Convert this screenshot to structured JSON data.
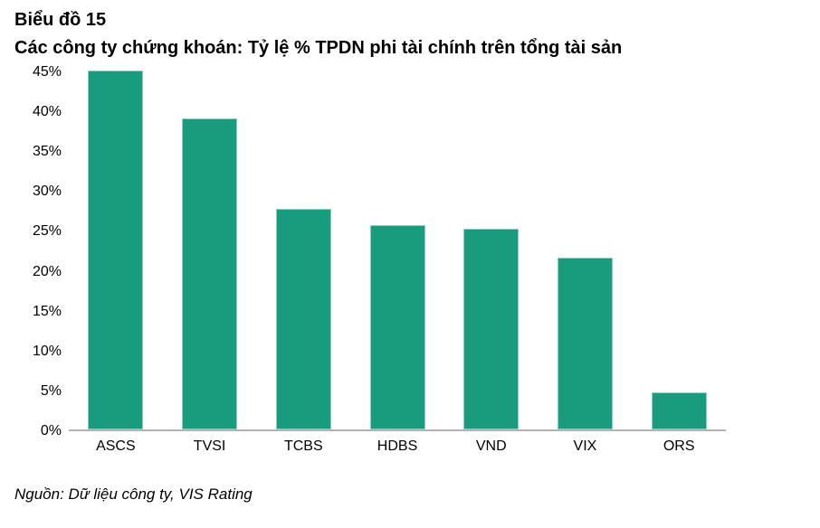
{
  "header": {
    "title": "Biểu đồ 15",
    "subtitle": "Các công ty chứng khoán: Tỷ lệ % TPDN phi tài chính trên tổng tài sản"
  },
  "footer": {
    "source": "Nguồn: Dữ liệu công ty, VIS Rating"
  },
  "chart_data": {
    "type": "bar",
    "title": "Biểu đồ 15",
    "subtitle": "Các công ty chứng khoán: Tỷ lệ % TPDN phi tài chính trên tổng tài sản",
    "categories": [
      "ASCS",
      "TVSI",
      "TCBS",
      "HDBS",
      "VND",
      "VIX",
      "ORS"
    ],
    "values": [
      45,
      39,
      27.7,
      25.6,
      25.2,
      21.5,
      4.6
    ],
    "value_unit": "%",
    "xlabel": "",
    "ylabel": "",
    "ylim": [
      0,
      45
    ],
    "yticks": [
      {
        "value": 45,
        "label": "45%"
      },
      {
        "value": 40,
        "label": "40%"
      },
      {
        "value": 35,
        "label": "35%"
      },
      {
        "value": 30,
        "label": "30%"
      },
      {
        "value": 25,
        "label": "25%"
      },
      {
        "value": 20,
        "label": "20%"
      },
      {
        "value": 15,
        "label": "15%"
      },
      {
        "value": 10,
        "label": "10%"
      },
      {
        "value": 5,
        "label": "5%"
      },
      {
        "value": 0,
        "label": "0%"
      }
    ],
    "grid": false,
    "legend": false,
    "source": "Nguồn: Dữ liệu công ty, VIS Rating",
    "colors": {
      "bar": "#199B7E",
      "axis": "#B3B3B3",
      "text": "#000000"
    }
  }
}
